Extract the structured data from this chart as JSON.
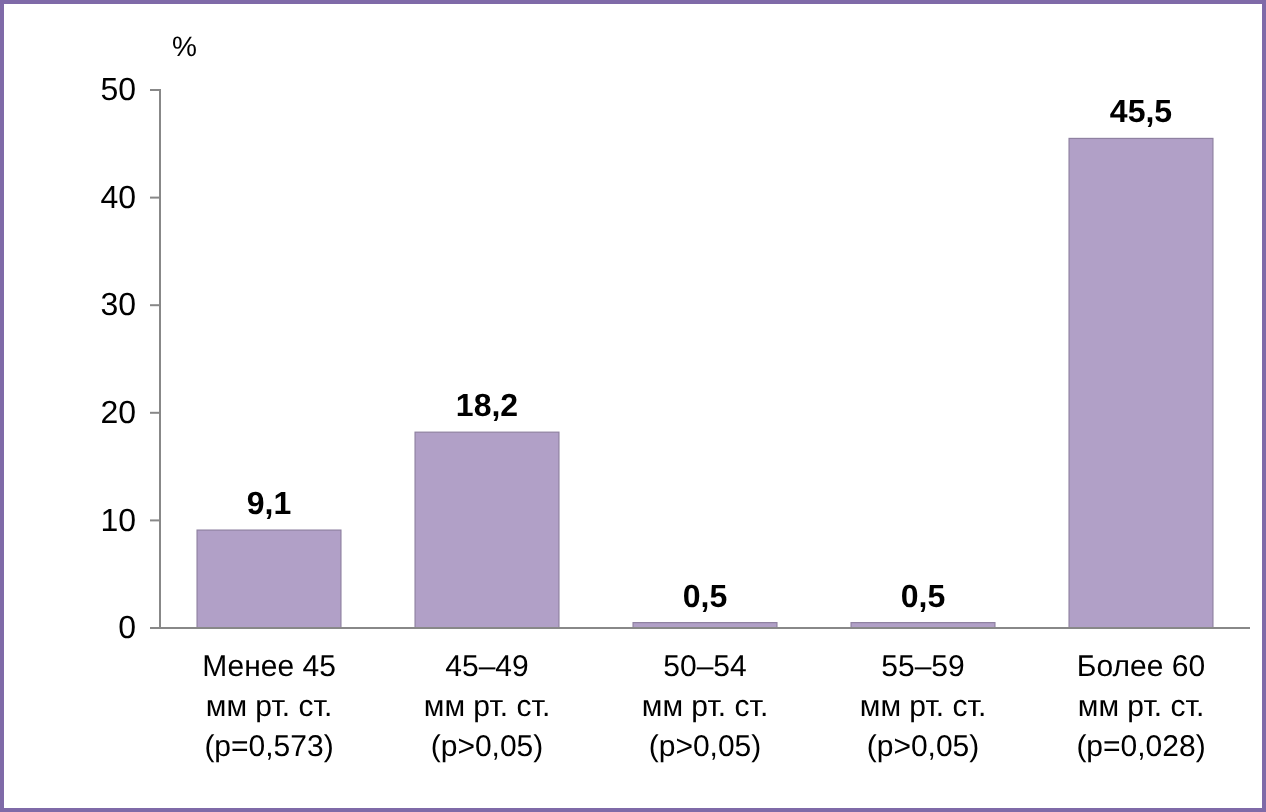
{
  "chart_data": {
    "type": "bar",
    "ylabel": "%",
    "categories": [
      "Менее 45\nмм рт. ст.\n(p=0,573)",
      "45–49\nмм рт. ст.\n(p>0,05)",
      "50–54\nмм рт. ст.\n(p>0,05)",
      "55–59\nмм рт. ст.\n(p>0,05)",
      "Более 60\nмм рт. ст.\n(p=0,028)"
    ],
    "values": [
      9.1,
      18.2,
      0.5,
      0.5,
      45.5
    ],
    "value_labels": [
      "9,1",
      "18,2",
      "0,5",
      "0,5",
      "45,5"
    ],
    "color": "#b1a0c7",
    "ylim": [
      0,
      50
    ],
    "yticks": [
      0,
      10,
      20,
      30,
      40,
      50
    ],
    "grid": false
  }
}
